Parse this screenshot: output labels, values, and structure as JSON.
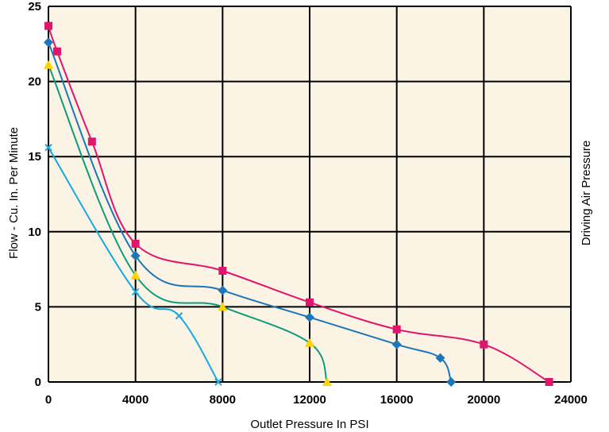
{
  "chart_data": {
    "type": "line",
    "title": "",
    "xlabel": "Outlet Pressure In PSI",
    "ylabel": "Flow - Cu. In. Per Minute",
    "right_label": "Driving Air Pressure",
    "xlim": [
      0,
      24000
    ],
    "ylim": [
      0,
      25
    ],
    "x_ticks": [
      "0",
      "4000",
      "8000",
      "12000",
      "16000",
      "20000",
      "24000"
    ],
    "y_ticks": [
      "0",
      "5",
      "10",
      "15",
      "20",
      "25"
    ],
    "grid": true,
    "background": "#fbf3e3",
    "series": [
      {
        "color": "#e0156e",
        "marker": "square",
        "x": [
          0,
          400,
          2000,
          4000,
          8000,
          12000,
          16000,
          20000,
          23000
        ],
        "y": [
          23.7,
          22.0,
          16.0,
          9.2,
          7.4,
          5.3,
          3.5,
          2.5,
          0
        ]
      },
      {
        "color": "#1c76bc",
        "marker": "diamond",
        "x": [
          0,
          4000,
          8000,
          12000,
          16000,
          18000,
          18500
        ],
        "y": [
          22.6,
          8.4,
          6.1,
          4.3,
          2.5,
          1.6,
          0
        ]
      },
      {
        "color": "#ffd200",
        "line_color": "#0e9c7c",
        "marker": "triangle",
        "x": [
          0,
          4000,
          8000,
          12000,
          12800
        ],
        "y": [
          21.1,
          7.1,
          5.0,
          2.6,
          0
        ]
      },
      {
        "color": "#1aa9e0",
        "marker": "x",
        "x": [
          0,
          4000,
          6000,
          7800
        ],
        "y": [
          15.6,
          6.0,
          4.4,
          0
        ]
      }
    ]
  }
}
